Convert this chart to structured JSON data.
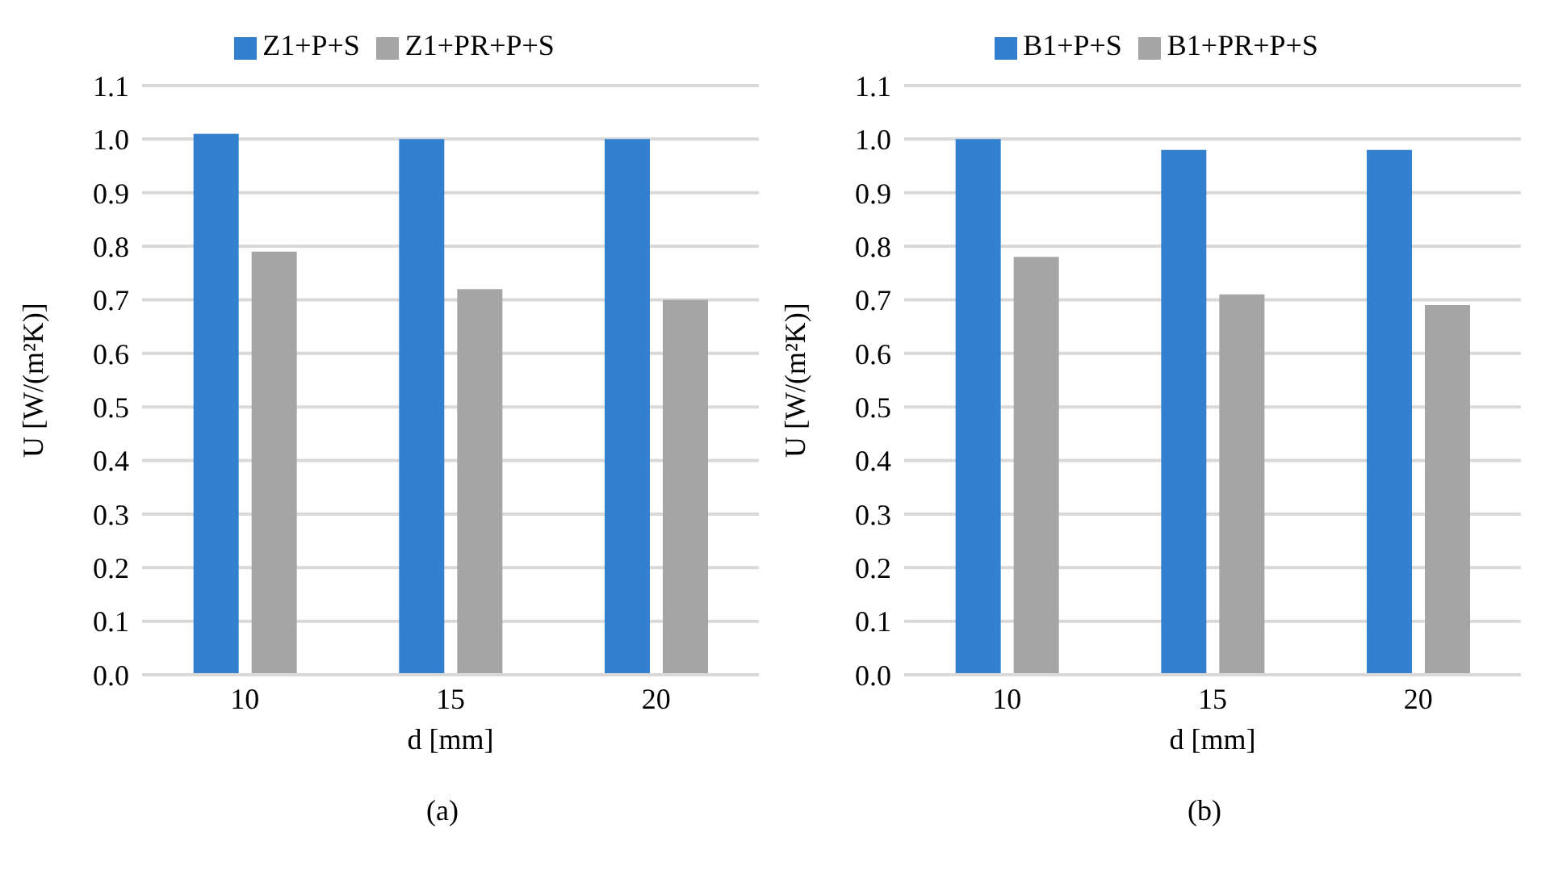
{
  "chart_data": [
    {
      "type": "bar",
      "categories": [
        "10",
        "15",
        "20"
      ],
      "xlabel": "d [mm]",
      "ylabel": "U [W/(m²K)]",
      "ylim": [
        0,
        1.1
      ],
      "yticks": [
        {
          "value": 0,
          "label": "0.0"
        },
        {
          "value": 0.1,
          "label": "0.1"
        },
        {
          "value": 0.2,
          "label": "0.2"
        },
        {
          "value": 0.3,
          "label": "0.3"
        },
        {
          "value": 0.4,
          "label": "0.4"
        },
        {
          "value": 0.5,
          "label": "0.5"
        },
        {
          "value": 0.6,
          "label": "0.6"
        },
        {
          "value": 0.7,
          "label": "0.7"
        },
        {
          "value": 0.8,
          "label": "0.8"
        },
        {
          "value": 0.9,
          "label": "0.9"
        },
        {
          "value": 1,
          "label": "1.0"
        },
        {
          "value": 1.1,
          "label": "1.1"
        }
      ],
      "grid": "y",
      "legend": "top",
      "annotations": [
        "(a)"
      ],
      "series": [
        {
          "name": "Z1+P+S",
          "color": "#3380cf",
          "values": [
            1.01,
            1.0,
            1.0
          ]
        },
        {
          "name": "Z1+PR+P+S",
          "color": "#a5a5a5",
          "values": [
            0.79,
            0.72,
            0.7
          ]
        }
      ]
    },
    {
      "type": "bar",
      "categories": [
        "10",
        "15",
        "20"
      ],
      "xlabel": "d [mm]",
      "ylabel": "U [W/(m²K)]",
      "ylim": [
        0,
        1.1
      ],
      "yticks": [
        {
          "value": 0,
          "label": "0.0"
        },
        {
          "value": 0.1,
          "label": "0.1"
        },
        {
          "value": 0.2,
          "label": "0.2"
        },
        {
          "value": 0.3,
          "label": "0.3"
        },
        {
          "value": 0.4,
          "label": "0.4"
        },
        {
          "value": 0.5,
          "label": "0.5"
        },
        {
          "value": 0.6,
          "label": "0.6"
        },
        {
          "value": 0.7,
          "label": "0.7"
        },
        {
          "value": 0.8,
          "label": "0.8"
        },
        {
          "value": 0.9,
          "label": "0.9"
        },
        {
          "value": 1,
          "label": "1.0"
        },
        {
          "value": 1.1,
          "label": "1.1"
        }
      ],
      "grid": "y",
      "legend": "top",
      "annotations": [
        "(b)"
      ],
      "series": [
        {
          "name": "B1+P+S",
          "color": "#3380cf",
          "values": [
            1.0,
            0.98,
            0.98
          ]
        },
        {
          "name": "B1+PR+P+S",
          "color": "#a5a5a5",
          "values": [
            0.78,
            0.71,
            0.69
          ]
        }
      ]
    }
  ]
}
